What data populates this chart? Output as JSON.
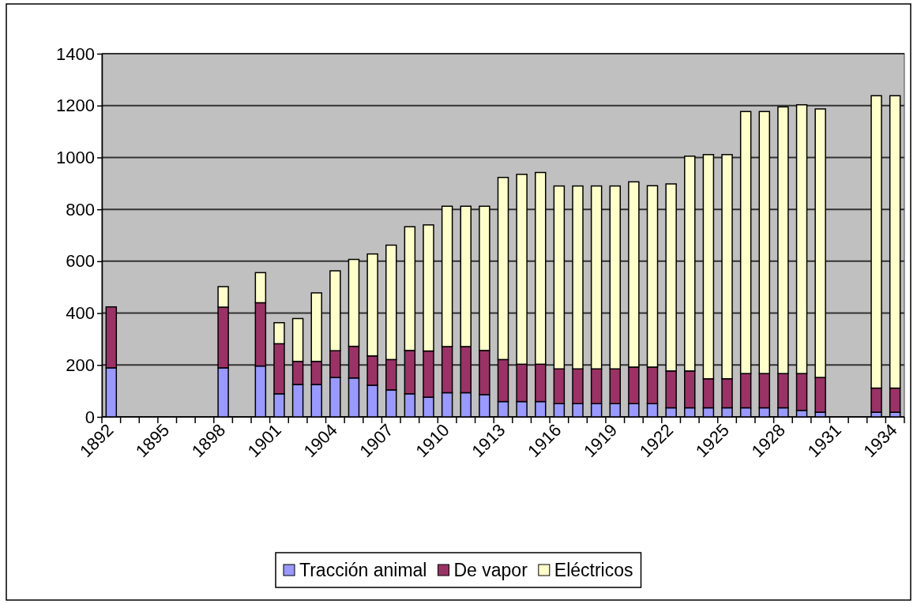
{
  "chart_data": {
    "type": "bar",
    "stacked": true,
    "categories": [
      "1892",
      null,
      null,
      "1895",
      null,
      null,
      "1898",
      null,
      null,
      "1901",
      null,
      null,
      "1904",
      null,
      null,
      "1907",
      null,
      null,
      "1910",
      null,
      null,
      "1913",
      null,
      null,
      "1916",
      null,
      null,
      "1919",
      null,
      null,
      "1922",
      null,
      null,
      "1925",
      null,
      null,
      "1928",
      null,
      null,
      "1931",
      null,
      null,
      "1934"
    ],
    "series": [
      {
        "name": "Tracción animal",
        "color": "#9999ff",
        "values": [
          189,
          null,
          null,
          null,
          null,
          null,
          189,
          null,
          196,
          89,
          125,
          125,
          152,
          150,
          122,
          104,
          89,
          76,
          93,
          93,
          86,
          59,
          59,
          59,
          51,
          51,
          51,
          51,
          51,
          51,
          35,
          35,
          35,
          35,
          35,
          35,
          35,
          25,
          18,
          null,
          null,
          18,
          18
        ]
      },
      {
        "name": "De vapor",
        "color": "#993366",
        "values": [
          235,
          null,
          null,
          null,
          null,
          null,
          234,
          null,
          244,
          193,
          89,
          89,
          103,
          122,
          113,
          117,
          167,
          178,
          178,
          178,
          170,
          162,
          144,
          144,
          134,
          134,
          134,
          134,
          141,
          141,
          142,
          142,
          112,
          112,
          132,
          132,
          132,
          142,
          134,
          null,
          null,
          93,
          93
        ]
      },
      {
        "name": "Eléctricos",
        "color": "#ffffcc",
        "values": [
          0,
          null,
          null,
          null,
          null,
          null,
          79,
          null,
          116,
          81,
          165,
          264,
          308,
          335,
          393,
          441,
          477,
          486,
          541,
          541,
          556,
          702,
          732,
          739,
          705,
          705,
          705,
          705,
          714,
          699,
          721,
          828,
          864,
          864,
          1010,
          1010,
          1028,
          1036,
          1035,
          null,
          null,
          1127,
          1127
        ]
      }
    ],
    "ylim": [
      0,
      1400
    ],
    "yticks": [
      0,
      200,
      400,
      600,
      800,
      1000,
      1200,
      1400
    ],
    "grid": "y",
    "legend": "bottom"
  }
}
